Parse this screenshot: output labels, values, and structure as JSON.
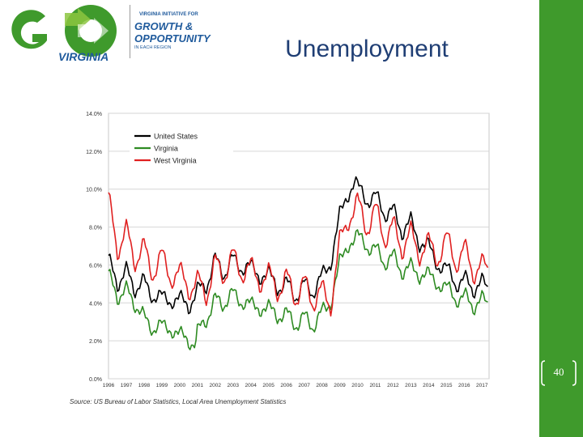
{
  "slide": {
    "title": "Unemployment",
    "page_number": "40",
    "source": "Source: US Bureau of Labor Statistics, Local Area Unemployment Statistics",
    "accent_color": "#3f9a2c"
  },
  "logo": {
    "top_line": "VIRGINIA INITIATIVE FOR",
    "growth": "GROWTH &",
    "opportunity": "OPPORTUNITY",
    "bottom_line": "IN EACH REGION",
    "go": "GO",
    "virginia": "VIRGINIA"
  },
  "chart_data": {
    "type": "line",
    "title": "",
    "xlabel": "",
    "ylabel": "",
    "ylim": [
      0,
      14
    ],
    "yticks": [
      "0.0%",
      "2.0%",
      "4.0%",
      "6.0%",
      "8.0%",
      "10.0%",
      "12.0%",
      "14.0%"
    ],
    "x_years": [
      "1996",
      "1997",
      "1998",
      "1999",
      "2000",
      "2001",
      "2002",
      "2003",
      "2004",
      "2005",
      "2006",
      "2007",
      "2008",
      "2009",
      "2010",
      "2011",
      "2012",
      "2013",
      "2014",
      "2015",
      "2016",
      "2017"
    ],
    "grid": true,
    "legend_position": "top-left",
    "series": [
      {
        "name": "United States",
        "color": "#000000",
        "keyframes": [
          [
            1996,
            6.2
          ],
          [
            1996.5,
            5.1
          ],
          [
            1997,
            5.6
          ],
          [
            1997.5,
            4.8
          ],
          [
            1998,
            5.1
          ],
          [
            1998.5,
            4.3
          ],
          [
            1999,
            4.4
          ],
          [
            1999.5,
            4.0
          ],
          [
            2000,
            4.3
          ],
          [
            2000.5,
            3.8
          ],
          [
            2001,
            4.6
          ],
          [
            2001.5,
            5.0
          ],
          [
            2002,
            6.2
          ],
          [
            2002.5,
            5.6
          ],
          [
            2003,
            6.3
          ],
          [
            2003.5,
            5.8
          ],
          [
            2004,
            6.0
          ],
          [
            2004.5,
            5.3
          ],
          [
            2005,
            5.6
          ],
          [
            2005.5,
            4.8
          ],
          [
            2006,
            5.0
          ],
          [
            2006.5,
            4.4
          ],
          [
            2007,
            4.9
          ],
          [
            2007.5,
            4.6
          ],
          [
            2008,
            5.4
          ],
          [
            2008.5,
            6.1
          ],
          [
            2009,
            8.7
          ],
          [
            2009.5,
            9.7
          ],
          [
            2009.85,
            10.5
          ],
          [
            2010,
            10.2
          ],
          [
            2010.5,
            9.4
          ],
          [
            2011,
            9.6
          ],
          [
            2011.5,
            8.8
          ],
          [
            2012,
            8.8
          ],
          [
            2012.5,
            7.8
          ],
          [
            2013,
            8.3
          ],
          [
            2013.5,
            7.1
          ],
          [
            2014,
            7.1
          ],
          [
            2014.5,
            5.9
          ],
          [
            2015,
            5.9
          ],
          [
            2015.5,
            5.0
          ],
          [
            2016,
            5.2
          ],
          [
            2016.5,
            4.8
          ],
          [
            2017,
            5.0
          ],
          [
            2017.4,
            4.8
          ]
        ],
        "seasonal_amplitude": 0.32
      },
      {
        "name": "Virginia",
        "color": "#2e8b22",
        "keyframes": [
          [
            1996,
            5.4
          ],
          [
            1996.5,
            4.4
          ],
          [
            1997,
            4.6
          ],
          [
            1997.5,
            4.0
          ],
          [
            1998,
            3.2
          ],
          [
            1998.5,
            2.6
          ],
          [
            1999,
            2.9
          ],
          [
            1999.5,
            2.5
          ],
          [
            2000,
            2.4
          ],
          [
            2000.5,
            2.0
          ],
          [
            2000.9,
            1.8
          ],
          [
            2001,
            2.4
          ],
          [
            2001.5,
            3.2
          ],
          [
            2002,
            4.1
          ],
          [
            2002.5,
            4.0
          ],
          [
            2003,
            4.5
          ],
          [
            2003.5,
            4.0
          ],
          [
            2004,
            4.0
          ],
          [
            2004.5,
            3.6
          ],
          [
            2005,
            3.8
          ],
          [
            2005.5,
            3.3
          ],
          [
            2006,
            3.4
          ],
          [
            2006.5,
            2.9
          ],
          [
            2007,
            3.2
          ],
          [
            2007.5,
            2.8
          ],
          [
            2008,
            3.5
          ],
          [
            2008.5,
            4.0
          ],
          [
            2009,
            6.2
          ],
          [
            2009.5,
            7.0
          ],
          [
            2009.9,
            7.5
          ],
          [
            2010,
            7.6
          ],
          [
            2010.5,
            7.0
          ],
          [
            2011,
            6.8
          ],
          [
            2011.5,
            6.2
          ],
          [
            2012,
            6.4
          ],
          [
            2012.5,
            5.7
          ],
          [
            2013,
            5.9
          ],
          [
            2013.5,
            5.4
          ],
          [
            2014,
            5.6
          ],
          [
            2014.5,
            4.9
          ],
          [
            2015,
            4.9
          ],
          [
            2015.5,
            4.2
          ],
          [
            2016,
            4.3
          ],
          [
            2016.5,
            3.9
          ],
          [
            2017,
            4.1
          ],
          [
            2017.4,
            4.0
          ]
        ],
        "seasonal_amplitude": 0.3
      },
      {
        "name": "West Virginia",
        "color": "#e02020",
        "keyframes": [
          [
            1996,
            9.3
          ],
          [
            1996.5,
            7.0
          ],
          [
            1997,
            7.6
          ],
          [
            1997.5,
            6.4
          ],
          [
            1998,
            6.8
          ],
          [
            1998.5,
            5.6
          ],
          [
            1999,
            6.5
          ],
          [
            1999.5,
            5.3
          ],
          [
            2000,
            5.6
          ],
          [
            2000.5,
            4.8
          ],
          [
            2001,
            5.0
          ],
          [
            2001.5,
            4.6
          ],
          [
            2002,
            5.9
          ],
          [
            2002.5,
            5.6
          ],
          [
            2003,
            6.4
          ],
          [
            2003.5,
            5.6
          ],
          [
            2004,
            5.9
          ],
          [
            2004.5,
            5.1
          ],
          [
            2005,
            5.5
          ],
          [
            2005.5,
            4.7
          ],
          [
            2006,
            5.2
          ],
          [
            2006.5,
            4.4
          ],
          [
            2007,
            4.9
          ],
          [
            2007.5,
            4.2
          ],
          [
            2008,
            4.6
          ],
          [
            2008.5,
            3.9
          ],
          [
            2009,
            7.2
          ],
          [
            2009.5,
            8.4
          ],
          [
            2010,
            9.3
          ],
          [
            2010.5,
            8.0
          ],
          [
            2011,
            8.8
          ],
          [
            2011.5,
            7.6
          ],
          [
            2012,
            7.9
          ],
          [
            2012.5,
            7.0
          ],
          [
            2013,
            7.6
          ],
          [
            2013.5,
            6.6
          ],
          [
            2014,
            7.2
          ],
          [
            2014.5,
            6.3
          ],
          [
            2015,
            7.4
          ],
          [
            2015.5,
            6.2
          ],
          [
            2016,
            6.7
          ],
          [
            2016.5,
            5.8
          ],
          [
            2017,
            5.8
          ],
          [
            2017.4,
            5.9
          ]
        ],
        "seasonal_amplitude": 0.55
      }
    ]
  }
}
